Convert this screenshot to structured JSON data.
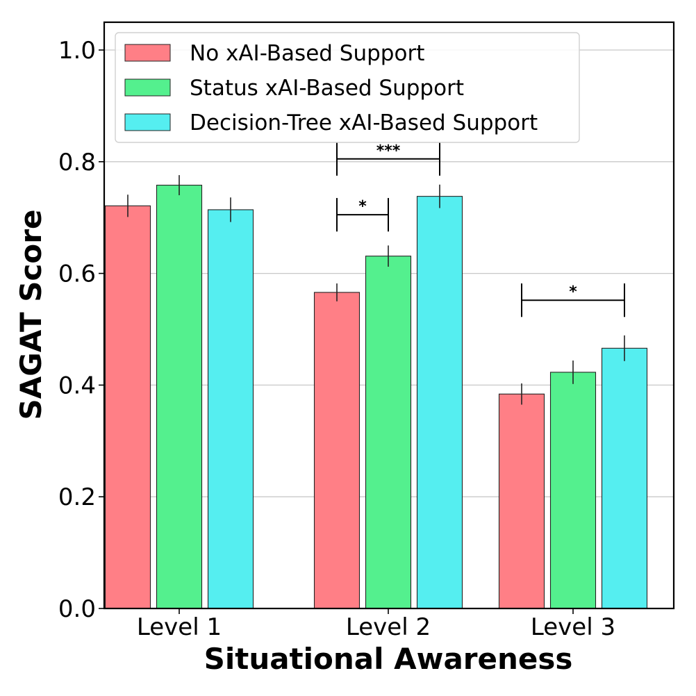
{
  "chart_data": {
    "type": "bar",
    "title": "",
    "xlabel": "Situational Awareness",
    "ylabel": "SAGAT Score",
    "ylim": [
      0,
      1.05
    ],
    "yticks": [
      "0.0",
      "0.2",
      "0.4",
      "0.6",
      "0.8",
      "1.0"
    ],
    "ytick_values": [
      0,
      0.2,
      0.4,
      0.6,
      0.8,
      1.0
    ],
    "grid": true,
    "legend_position": "top-left",
    "categories": [
      "Level 1",
      "Level 2",
      "Level 3"
    ],
    "series": [
      {
        "name": "No xAI-Based Support",
        "color": "#ff7f86",
        "values": [
          0.721,
          0.566,
          0.384
        ],
        "errors": [
          0.02,
          0.016,
          0.019
        ]
      },
      {
        "name": "Status xAI-Based Support",
        "color": "#54f08e",
        "values": [
          0.758,
          0.631,
          0.423
        ],
        "errors": [
          0.018,
          0.019,
          0.021
        ]
      },
      {
        "name": "Decision-Tree xAI-Based Support",
        "color": "#55eef0",
        "values": [
          0.714,
          0.738,
          0.466
        ],
        "errors": [
          0.022,
          0.021,
          0.023
        ]
      }
    ],
    "significance": [
      {
        "category": 1,
        "from_series": 0,
        "to_series": 2,
        "label": "***",
        "y": 0.805,
        "tick_drop": 0.03
      },
      {
        "category": 1,
        "from_series": 0,
        "to_series": 1,
        "label": "*",
        "y": 0.705,
        "tick_drop": 0.03
      },
      {
        "category": 2,
        "from_series": 0,
        "to_series": 2,
        "label": "*",
        "y": 0.552,
        "tick_drop": 0.03
      }
    ]
  }
}
